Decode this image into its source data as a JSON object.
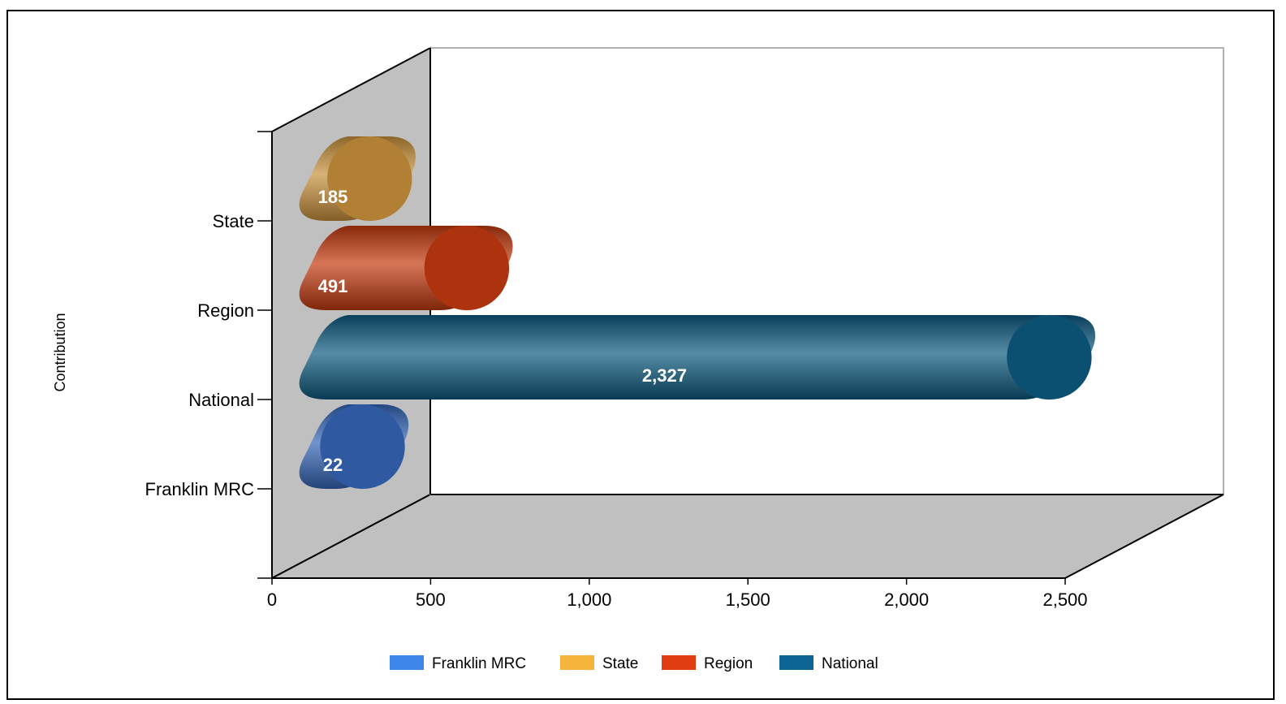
{
  "chart_data": {
    "type": "bar",
    "orientation": "horizontal",
    "style": "3d-cylinder",
    "ylabel": "Contribution",
    "categories": [
      "Franklin MRC",
      "National",
      "Region",
      "State"
    ],
    "series": [
      {
        "name": "Franklin MRC",
        "color": "#3f86ea",
        "bar_color": "#3566b8",
        "category": "Franklin MRC",
        "value": 22,
        "label": "22"
      },
      {
        "name": "National",
        "color": "#0d6594",
        "bar_color": "#0d5a80",
        "category": "National",
        "value": 2327,
        "label": "2,327"
      },
      {
        "name": "Region",
        "color": "#e03e12",
        "bar_color": "#c43a10",
        "category": "Region",
        "value": 491,
        "label": "491"
      },
      {
        "name": "State",
        "color": "#f5b43c",
        "bar_color": "#c9913c",
        "category": "State",
        "value": 185,
        "label": "185"
      }
    ],
    "xlim": [
      0,
      2500
    ],
    "xticks": [
      "0",
      "500",
      "1,000",
      "1,500",
      "2,000",
      "2,500"
    ],
    "xtick_values": [
      0,
      500,
      1000,
      1500,
      2000,
      2500
    ],
    "legend": [
      "Franklin MRC",
      "State",
      "Region",
      "National"
    ],
    "legend_position": "bottom",
    "grid": false
  }
}
